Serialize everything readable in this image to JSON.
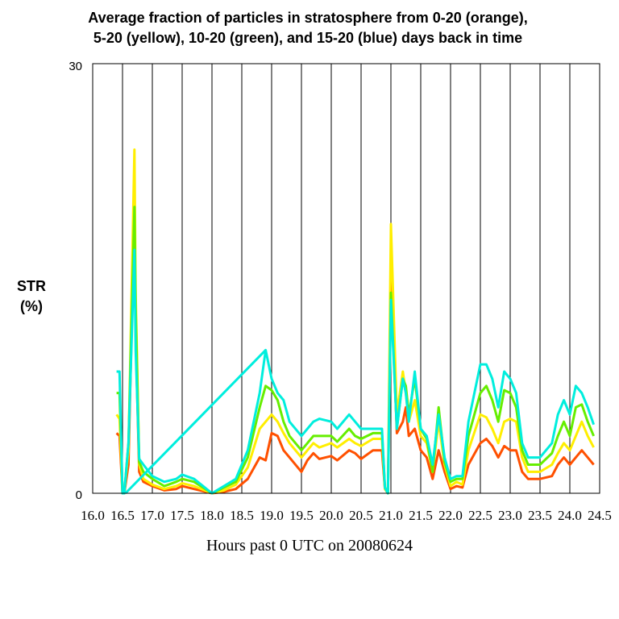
{
  "chart_data": {
    "type": "line",
    "title_lines": [
      "Average fraction of particles in stratosphere from 0-20 (orange),",
      "5-20 (yellow), 10-20 (green), and 15-20 (blue) days back in time"
    ],
    "xlabel": "Hours past 0 UTC on 20080624",
    "ylabel_lines": [
      "STR",
      "(%)"
    ],
    "xlim": [
      16.0,
      24.5
    ],
    "ylim": [
      0,
      30
    ],
    "y_ticks": [
      0,
      30
    ],
    "x_ticks": [
      16.0,
      16.5,
      17.0,
      17.5,
      18.0,
      18.5,
      19.0,
      19.5,
      20.0,
      20.5,
      21.0,
      21.5,
      22.0,
      22.5,
      23.0,
      23.5,
      24.0,
      24.5
    ],
    "x_tick_labels": [
      "16.0",
      "16.5",
      "17.0",
      "17.5",
      "18.0",
      "18.5",
      "19.0",
      "19.5",
      "20.0",
      "20.5",
      "21.0",
      "21.5",
      "22.0",
      "22.5",
      "23.0",
      "23.5",
      "24.0",
      "24.5"
    ],
    "grid": "vertical",
    "series": [
      {
        "color": "#ff5000",
        "x": [
          16.4,
          16.45,
          16.5,
          16.53,
          16.6,
          16.7,
          16.72,
          16.78,
          16.85,
          17.0,
          17.2,
          17.4,
          17.5,
          17.7,
          18.0,
          18.2,
          18.4,
          18.6,
          18.8,
          18.9,
          19.0,
          19.1,
          19.2,
          19.3,
          19.5,
          19.6,
          19.7,
          19.8,
          20.0,
          20.1,
          20.3,
          20.4,
          20.5,
          20.7,
          20.85,
          20.9,
          20.95,
          21.0,
          21.1,
          21.2,
          21.25,
          21.3,
          21.4,
          21.5,
          21.6,
          21.7,
          21.8,
          21.9,
          22.0,
          22.1,
          22.2,
          22.3,
          22.5,
          22.6,
          22.7,
          22.8,
          22.9,
          23.0,
          23.1,
          23.2,
          23.3,
          23.5,
          23.7,
          23.8,
          23.9,
          24.0,
          24.1,
          24.2,
          24.3,
          24.4
        ],
        "y": [
          4.2,
          4.0,
          0.0,
          0.0,
          2.0,
          20.0,
          11.0,
          1.5,
          0.8,
          0.5,
          0.2,
          0.3,
          0.5,
          0.3,
          0.0,
          0.1,
          0.3,
          1.0,
          2.5,
          2.3,
          4.2,
          4.0,
          3.0,
          2.5,
          1.5,
          2.3,
          2.8,
          2.4,
          2.6,
          2.3,
          3.0,
          2.8,
          2.4,
          3.0,
          3.0,
          0.3,
          0.0,
          15.0,
          4.2,
          5.0,
          6.0,
          4.0,
          4.5,
          3.0,
          2.5,
          1.0,
          3.0,
          1.5,
          0.3,
          0.5,
          0.4,
          2.0,
          3.5,
          3.8,
          3.3,
          2.5,
          3.3,
          3.0,
          3.0,
          1.5,
          1.0,
          1.0,
          1.2,
          2.0,
          2.5,
          2.0,
          2.5,
          3.0,
          2.5,
          2.0
        ]
      },
      {
        "color": "#ffee00",
        "x": [
          16.4,
          16.45,
          16.5,
          16.53,
          16.6,
          16.7,
          16.72,
          16.78,
          16.85,
          17.0,
          17.2,
          17.4,
          17.5,
          17.7,
          18.0,
          18.2,
          18.4,
          18.6,
          18.8,
          18.9,
          19.0,
          19.1,
          19.2,
          19.3,
          19.5,
          19.6,
          19.7,
          19.8,
          20.0,
          20.1,
          20.3,
          20.4,
          20.5,
          20.7,
          20.85,
          20.9,
          20.95,
          21.0,
          21.1,
          21.2,
          21.25,
          21.3,
          21.4,
          21.5,
          21.6,
          21.7,
          21.8,
          21.9,
          22.0,
          22.1,
          22.2,
          22.3,
          22.5,
          22.6,
          22.7,
          22.8,
          22.9,
          23.0,
          23.1,
          23.2,
          23.3,
          23.5,
          23.7,
          23.8,
          23.9,
          24.0,
          24.1,
          24.2,
          24.3,
          24.4
        ],
        "y": [
          5.5,
          5.2,
          0.0,
          0.0,
          3.0,
          24.0,
          14.0,
          2.0,
          1.0,
          0.6,
          0.3,
          0.5,
          0.7,
          0.5,
          0.0,
          0.2,
          0.6,
          1.8,
          4.5,
          5.0,
          5.5,
          5.0,
          4.2,
          3.5,
          2.5,
          3.0,
          3.5,
          3.2,
          3.5,
          3.2,
          3.8,
          3.5,
          3.3,
          3.8,
          3.8,
          0.3,
          0.0,
          18.8,
          5.5,
          8.5,
          7.0,
          5.0,
          6.5,
          4.0,
          3.5,
          1.5,
          5.0,
          2.0,
          0.5,
          0.8,
          0.6,
          3.0,
          5.5,
          5.3,
          4.5,
          3.5,
          5.0,
          5.2,
          5.0,
          2.5,
          1.5,
          1.5,
          2.0,
          2.8,
          3.5,
          3.0,
          4.0,
          5.0,
          4.0,
          3.2
        ]
      },
      {
        "color": "#66ee00",
        "x": [
          16.4,
          16.45,
          16.5,
          16.53,
          16.6,
          16.7,
          16.72,
          16.78,
          16.85,
          17.0,
          17.2,
          17.4,
          17.5,
          17.7,
          18.0,
          18.2,
          18.4,
          18.6,
          18.8,
          18.9,
          19.0,
          19.1,
          19.2,
          19.3,
          19.5,
          19.6,
          19.7,
          19.8,
          20.0,
          20.1,
          20.3,
          20.4,
          20.5,
          20.7,
          20.85,
          20.9,
          20.95,
          21.0,
          21.1,
          21.2,
          21.25,
          21.3,
          21.4,
          21.5,
          21.6,
          21.7,
          21.8,
          21.9,
          22.0,
          22.1,
          22.2,
          22.3,
          22.5,
          22.6,
          22.7,
          22.8,
          22.9,
          23.0,
          23.1,
          23.2,
          23.3,
          23.5,
          23.7,
          23.8,
          23.9,
          24.0,
          24.1,
          24.2,
          24.3,
          24.4
        ],
        "y": [
          7.0,
          7.0,
          0.0,
          0.0,
          3.5,
          20.0,
          13.0,
          2.2,
          1.5,
          1.0,
          0.5,
          0.8,
          1.0,
          0.8,
          0.0,
          0.4,
          0.8,
          2.5,
          6.0,
          7.5,
          7.2,
          6.5,
          5.0,
          4.0,
          3.0,
          3.5,
          4.0,
          4.0,
          4.0,
          3.6,
          4.5,
          4.0,
          3.8,
          4.2,
          4.2,
          0.4,
          0.0,
          14.0,
          4.5,
          8.0,
          7.5,
          5.5,
          8.0,
          4.5,
          3.8,
          1.5,
          6.0,
          2.2,
          0.8,
          1.0,
          1.0,
          4.0,
          7.0,
          7.5,
          6.5,
          5.0,
          7.2,
          7.0,
          6.0,
          3.0,
          2.0,
          2.0,
          2.8,
          4.0,
          5.0,
          4.0,
          6.0,
          6.2,
          5.0,
          4.0
        ]
      },
      {
        "color": "#00eedd",
        "x": [
          16.4,
          16.45,
          16.5,
          16.53,
          16.6,
          16.7,
          16.72,
          16.78,
          16.85,
          17.0,
          17.2,
          17.4,
          17.5,
          17.7,
          18.0,
          18.2,
          18.4,
          18.6,
          18.8,
          18.9,
          19.0,
          19.1,
          19.2,
          19.3,
          19.5,
          19.6,
          19.7,
          19.8,
          20.0,
          20.1,
          20.3,
          20.4,
          20.5,
          20.7,
          20.85,
          20.9,
          20.95,
          21.0,
          21.1,
          21.2,
          21.25,
          21.3,
          21.4,
          21.5,
          21.6,
          21.7,
          21.8,
          21.9,
          22.0,
          22.1,
          22.2,
          22.3,
          22.5,
          22.6,
          22.7,
          22.8,
          22.9,
          23.0,
          23.1,
          23.2,
          23.3,
          23.5,
          23.7,
          23.8,
          23.9,
          24.0,
          24.1,
          24.2,
          24.3,
          24.4
        ],
        "y": [
          8.5,
          8.5,
          0.0,
          0.0,
          3.5,
          17.0,
          10.0,
          2.4,
          2.0,
          1.2,
          0.8,
          1.0,
          1.3,
          1.0,
          0.0,
          0.5,
          1.0,
          3.0,
          7.0,
          10.0,
          8.0,
          7.0,
          6.5,
          5.0,
          4.0,
          4.5,
          5.0,
          5.2,
          5.0,
          4.5,
          5.5,
          5.0,
          4.5,
          4.5,
          4.5,
          0.4,
          0.0,
          13.5,
          4.5,
          8.0,
          7.0,
          5.0,
          8.5,
          4.5,
          4.0,
          2.0,
          5.5,
          2.5,
          1.0,
          1.2,
          1.2,
          5.0,
          9.0,
          9.0,
          8.0,
          6.0,
          8.5,
          8.0,
          7.0,
          3.5,
          2.5,
          2.5,
          3.5,
          5.5,
          6.5,
          5.5,
          7.5,
          7.0,
          6.0,
          4.8
        ]
      }
    ],
    "connector": {
      "color": "#00eedd",
      "from": [
        16.55,
        0.0
      ],
      "to": [
        18.9,
        10.0
      ]
    }
  }
}
